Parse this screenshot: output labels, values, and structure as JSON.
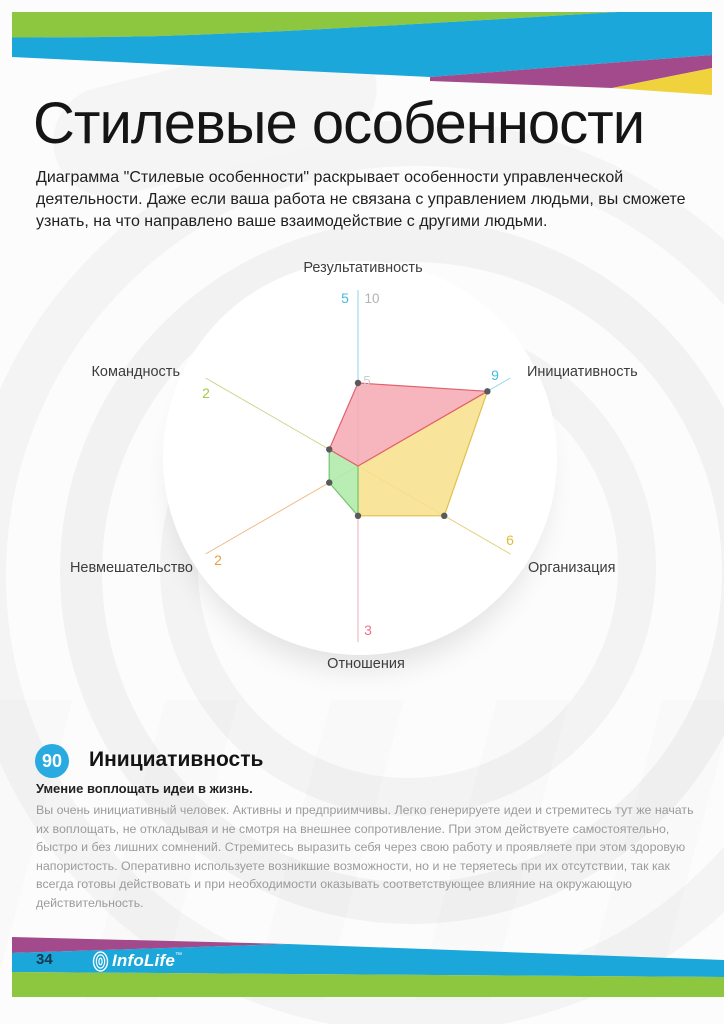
{
  "page": {
    "title": "Стилевые особенности",
    "intro": "Диаграмма \"Стилевые особенности\" раскрывает особенности управленческой деятельности. Даже если ваша работа не связана с управлением людьми, вы сможете узнать, на что направлено ваше взаимодействие с другими людьми."
  },
  "chart_data": {
    "type": "radar",
    "max": 10,
    "mid_scale_label": "5",
    "max_scale_label": "10",
    "grid": false,
    "axes": [
      {
        "label": "Результативность",
        "value": 5,
        "axis_color": "#8fd6e5",
        "value_color": "#45bcd9"
      },
      {
        "label": "Инициативность",
        "value": 9,
        "axis_color": "#9bd7ea",
        "value_color": "#45bcd9"
      },
      {
        "label": "Организация",
        "value": 6,
        "axis_color": "#e6cf7a",
        "value_color": "#dfbc3a"
      },
      {
        "label": "Отношения",
        "value": 3,
        "axis_color": "#f2aebc",
        "value_color": "#f1708e"
      },
      {
        "label": "Невмешательство",
        "value": 2,
        "axis_color": "#f0bb86",
        "value_color": "#ee9c43"
      },
      {
        "label": "Командность",
        "value": 2,
        "axis_color": "#c9d88e",
        "value_color": "#a5c74c"
      }
    ],
    "sectors": [
      {
        "name": "radar-sector-yellow",
        "axes": [
          1,
          2,
          3
        ],
        "fill": "#f7e189",
        "fill_opacity": 0.85,
        "stroke": "#dfc14d"
      },
      {
        "name": "radar-sector-green",
        "axes": [
          3,
          4,
          5
        ],
        "fill": "#aeeaa6",
        "fill_opacity": 0.85,
        "stroke": "#74c56f"
      },
      {
        "name": "radar-sector-pink",
        "axes": [
          5,
          0,
          1
        ],
        "fill": "#f6a9b2",
        "fill_opacity": 0.85,
        "stroke": "#e4606e"
      }
    ]
  },
  "score": {
    "value": "90",
    "title": "Инициативность",
    "subtitle": "Умение воплощать идеи в жизнь.",
    "body": "Вы очень инициативный человек. Активны и предприимчивы. Легко генерируете идеи и стремитесь тут же начать их воплощать, не откладывая и не смотря на внешнее сопротивление. При этом действуете самостоятельно, быстро и без лишних сомнений. Стремитесь выразить себя через свою работу и проявляете при этом здоровую напористость. Оперативно используете возникшие возможности, но и не теряетесь при их отсутствии, так как всегда готовы действовать и при необходимости оказывать соответствующее влияние на окружающую действительность."
  },
  "footer": {
    "page_number": "34",
    "brand": "InfoLife",
    "trademark": "™"
  },
  "colors": {
    "band_green": "#8dc63f",
    "band_blue": "#1ba7d9",
    "band_magenta": "#a34a8d",
    "band_yellow": "#efd23c",
    "badge_blue": "#29abe2"
  }
}
